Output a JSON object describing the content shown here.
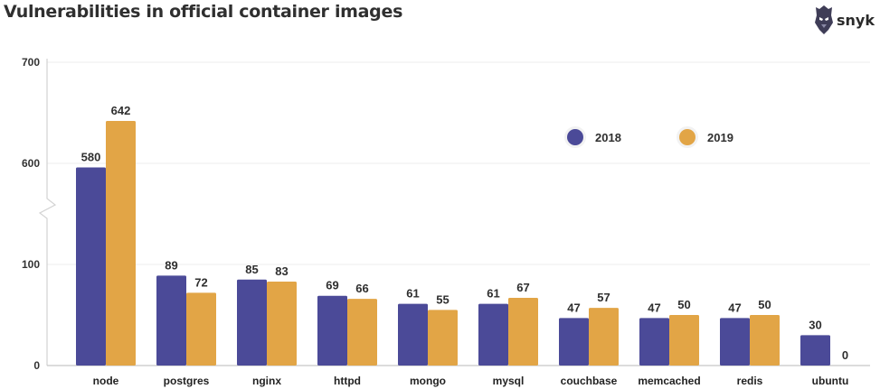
{
  "header": {
    "title": "Vulnerabilities in official container images"
  },
  "brand": {
    "name": "snyk",
    "icon": "snyk-logo-icon"
  },
  "chart_data": {
    "type": "bar",
    "title": "Vulnerabilities in official container images",
    "xlabel": "",
    "ylabel": "",
    "categories": [
      "node",
      "postgres",
      "nginx",
      "httpd",
      "mongo",
      "mysql",
      "couchbase",
      "memcached",
      "redis",
      "ubuntu"
    ],
    "series": [
      {
        "name": "2018",
        "color": "#4b4a98",
        "values": [
          580,
          89,
          85,
          69,
          61,
          61,
          47,
          47,
          47,
          30
        ]
      },
      {
        "name": "2019",
        "color": "#e2a546",
        "values": [
          642,
          72,
          83,
          66,
          55,
          67,
          57,
          50,
          50,
          0
        ]
      }
    ],
    "yticks": [
      0,
      100,
      600,
      700
    ],
    "axis_break": {
      "from": 100,
      "to": 550
    },
    "ylim": [
      0,
      700
    ],
    "grid": true,
    "legend_position": "top-right"
  }
}
